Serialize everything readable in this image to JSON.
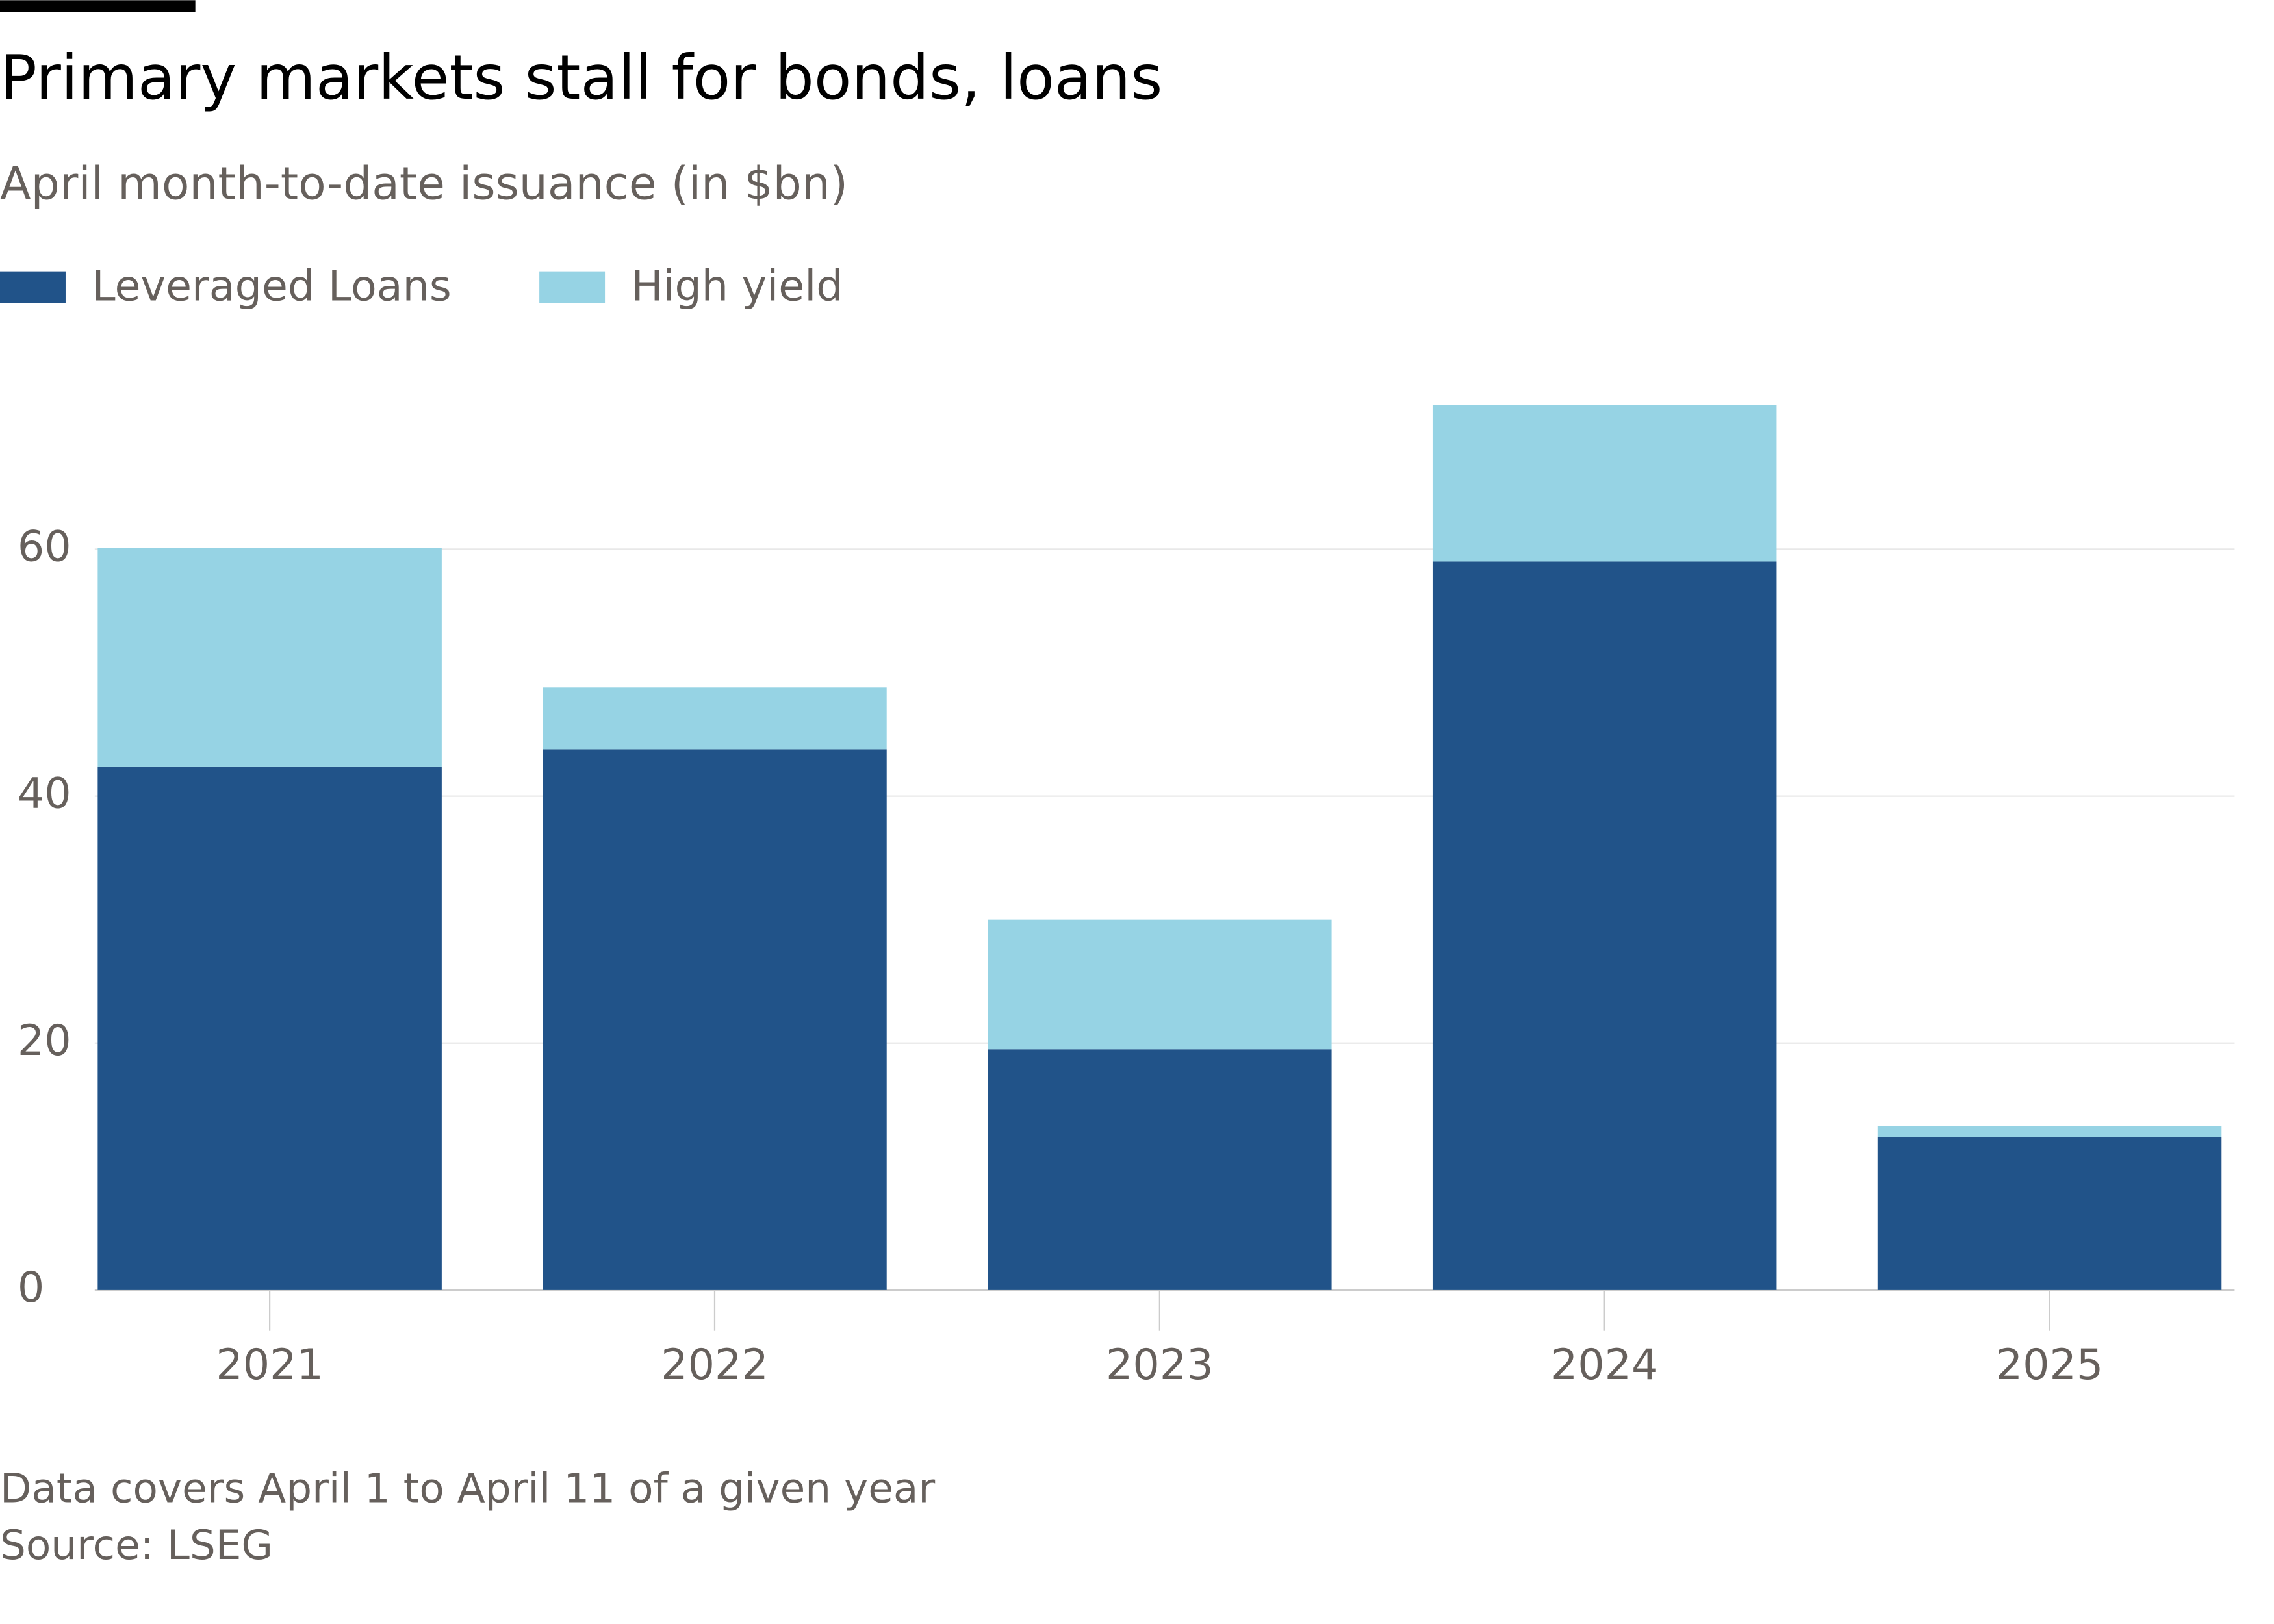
{
  "chart_data": {
    "type": "stacked_bar",
    "title": "Primary markets stall for bonds, loans",
    "subtitle": "April month-to-date issuance (in $bn)",
    "categories": [
      "2021",
      "2022",
      "2023",
      "2024",
      "2025"
    ],
    "series": [
      {
        "name": "Leveraged Loans",
        "color": "#215389",
        "values": [
          42.4,
          43.8,
          19.5,
          59.0,
          12.4
        ]
      },
      {
        "name": "High yield",
        "color": "#96d3e4",
        "values": [
          17.7,
          5.0,
          10.5,
          12.7,
          0.9
        ]
      }
    ],
    "ylim": [
      0,
      72
    ],
    "yticks": [
      0,
      20,
      40,
      60
    ],
    "grid": true,
    "legend": "top-left",
    "notes": [
      "Data covers April 1 to April 11 of a given year",
      "Source: LSEG"
    ]
  }
}
